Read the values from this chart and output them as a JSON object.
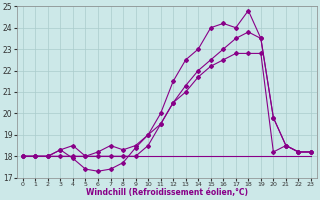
{
  "title": "Windchill (Refroidissement éolien,°C)",
  "bg_color": "#cce8e8",
  "line_color": "#880088",
  "xlim": [
    -0.5,
    23.5
  ],
  "ylim": [
    17,
    25
  ],
  "xticks": [
    0,
    1,
    2,
    3,
    4,
    5,
    6,
    7,
    8,
    9,
    10,
    11,
    12,
    13,
    14,
    15,
    16,
    17,
    18,
    19,
    20,
    21,
    22,
    23
  ],
  "yticks": [
    17,
    18,
    19,
    20,
    21,
    22,
    23,
    24,
    25
  ],
  "line1_x": [
    0,
    1,
    2,
    3,
    4,
    5,
    6,
    7,
    8,
    9,
    10,
    11,
    12,
    13,
    14,
    15,
    16,
    17,
    18,
    19,
    20,
    21,
    22,
    23
  ],
  "line1_y": [
    18,
    18,
    18,
    18,
    18,
    18,
    18,
    18,
    18,
    18,
    18,
    18,
    18,
    18,
    18,
    18,
    18,
    18,
    18,
    18,
    18,
    18,
    18,
    18
  ],
  "line2_x": [
    0,
    1,
    2,
    3,
    4,
    5,
    6,
    7,
    8,
    9,
    10,
    11,
    12,
    13,
    14,
    15,
    16,
    17,
    18,
    19,
    20,
    21,
    22,
    23
  ],
  "line2_y": [
    18,
    18,
    18,
    18.3,
    17.9,
    17.4,
    17.3,
    17.4,
    17.7,
    18.4,
    19.0,
    19.5,
    20.5,
    21.0,
    21.7,
    22.2,
    22.5,
    22.8,
    22.8,
    22.8,
    18.2,
    18.5,
    18.2,
    18.2
  ],
  "line3_x": [
    0,
    1,
    2,
    3,
    4,
    5,
    6,
    7,
    8,
    9,
    10,
    11,
    12,
    13,
    14,
    15,
    16,
    17,
    18,
    19,
    20,
    21,
    22,
    23
  ],
  "line3_y": [
    18,
    18,
    18,
    18,
    18,
    18,
    18,
    18,
    18,
    18,
    18.5,
    19.5,
    20.5,
    21.3,
    22.0,
    22.5,
    23.0,
    23.5,
    23.8,
    23.5,
    19.8,
    18.5,
    18.2,
    18.2
  ],
  "line4_x": [
    0,
    1,
    2,
    3,
    4,
    5,
    6,
    7,
    8,
    9,
    10,
    11,
    12,
    13,
    14,
    15,
    16,
    17,
    18,
    19,
    20,
    21,
    22,
    23
  ],
  "line4_y": [
    18,
    18,
    18,
    18.3,
    18.5,
    18.0,
    18.2,
    18.5,
    18.3,
    18.5,
    19.0,
    20.0,
    21.5,
    22.5,
    23.0,
    24.0,
    24.2,
    24.0,
    24.8,
    23.5,
    19.8,
    18.5,
    18.2,
    18.2
  ]
}
